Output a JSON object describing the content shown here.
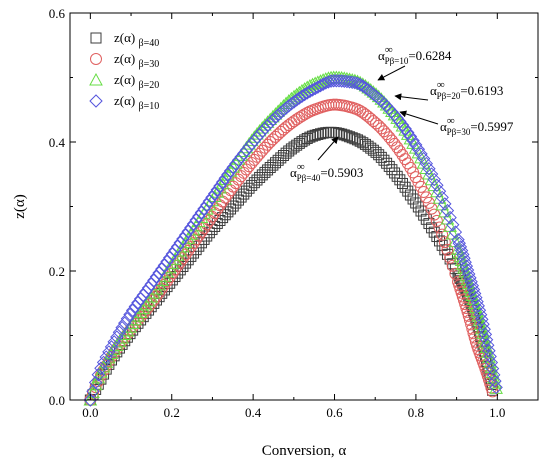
{
  "chart_data": {
    "type": "scatter",
    "title": "",
    "xlabel": "Conversion, α",
    "ylabel": "z(α)",
    "xlim": [
      -0.05,
      1.1
    ],
    "ylim": [
      0.0,
      0.6
    ],
    "xticks": [
      0.0,
      0.2,
      0.4,
      0.6,
      0.8,
      1.0
    ],
    "xtick_labels": [
      "0.0",
      "0.2",
      "0.4",
      "0.6",
      "0.8",
      "1.0"
    ],
    "yticks": [
      0.0,
      0.2,
      0.4,
      0.6
    ],
    "ytick_labels": [
      "0.0",
      "0.2",
      "0.4",
      "0.6"
    ],
    "grid": false,
    "legend_position": "top-left",
    "series": [
      {
        "name": "z(α)",
        "subscript": "β=40",
        "marker": "square",
        "color": "#3c3c3c",
        "peak_x": 0.5903,
        "peak_y": 0.415,
        "end_x": 0.99,
        "x": [
          0.0,
          0.02,
          0.05,
          0.1,
          0.15,
          0.2,
          0.25,
          0.3,
          0.35,
          0.4,
          0.45,
          0.5,
          0.55,
          0.59,
          0.65,
          0.7,
          0.75,
          0.8,
          0.85,
          0.9,
          0.93,
          0.95,
          0.97,
          0.99
        ],
        "y": [
          0.0,
          0.025,
          0.06,
          0.105,
          0.145,
          0.185,
          0.225,
          0.265,
          0.3,
          0.335,
          0.365,
          0.392,
          0.41,
          0.415,
          0.405,
          0.385,
          0.35,
          0.305,
          0.255,
          0.2,
          0.16,
          0.12,
          0.07,
          0.01
        ]
      },
      {
        "name": "z(α)",
        "subscript": "β=30",
        "marker": "circle",
        "color": "#e06060",
        "peak_x": 0.5997,
        "peak_y": 0.458,
        "end_x": 0.99,
        "x": [
          0.0,
          0.02,
          0.05,
          0.1,
          0.15,
          0.2,
          0.25,
          0.3,
          0.35,
          0.4,
          0.45,
          0.5,
          0.55,
          0.6,
          0.65,
          0.7,
          0.75,
          0.8,
          0.85,
          0.9,
          0.93,
          0.95,
          0.97,
          0.99
        ],
        "y": [
          0.0,
          0.03,
          0.065,
          0.11,
          0.15,
          0.195,
          0.24,
          0.285,
          0.33,
          0.37,
          0.405,
          0.432,
          0.45,
          0.458,
          0.452,
          0.43,
          0.395,
          0.345,
          0.28,
          0.19,
          0.13,
          0.085,
          0.05,
          0.01
        ]
      },
      {
        "name": "z(α)",
        "subscript": "β=20",
        "marker": "triangle",
        "color": "#66dd44",
        "peak_x": 0.6193,
        "peak_y": 0.5,
        "end_x": 1.0,
        "x": [
          0.0,
          0.02,
          0.05,
          0.1,
          0.15,
          0.2,
          0.25,
          0.3,
          0.35,
          0.4,
          0.45,
          0.5,
          0.55,
          0.6,
          0.65,
          0.7,
          0.75,
          0.8,
          0.85,
          0.9,
          0.93,
          0.96,
          0.98,
          1.0
        ],
        "y": [
          0.0,
          0.035,
          0.07,
          0.115,
          0.16,
          0.21,
          0.26,
          0.31,
          0.36,
          0.405,
          0.44,
          0.47,
          0.49,
          0.5,
          0.495,
          0.475,
          0.44,
          0.39,
          0.325,
          0.24,
          0.18,
          0.115,
          0.065,
          0.01
        ]
      },
      {
        "name": "z(α)",
        "subscript": "β=10",
        "marker": "diamond",
        "color": "#5555dd",
        "peak_x": 0.6284,
        "peak_y": 0.495,
        "end_x": 1.0,
        "x": [
          0.0,
          0.02,
          0.05,
          0.1,
          0.15,
          0.2,
          0.25,
          0.3,
          0.35,
          0.4,
          0.45,
          0.5,
          0.55,
          0.6,
          0.65,
          0.7,
          0.75,
          0.8,
          0.85,
          0.9,
          0.93,
          0.96,
          0.98,
          1.0
        ],
        "y": [
          0.0,
          0.04,
          0.08,
          0.135,
          0.18,
          0.225,
          0.27,
          0.315,
          0.36,
          0.4,
          0.435,
          0.462,
          0.482,
          0.495,
          0.492,
          0.472,
          0.44,
          0.395,
          0.335,
          0.255,
          0.195,
          0.13,
          0.075,
          0.01
        ]
      }
    ],
    "annotations": [
      {
        "base": "α",
        "superscript": "∞",
        "subscript": "Pβ=10",
        "value": "=0.6284"
      },
      {
        "base": "α",
        "superscript": "∞",
        "subscript": "Pβ=20",
        "value": "=0.6193"
      },
      {
        "base": "α",
        "superscript": "∞",
        "subscript": "Pβ=30",
        "value": "=0.5997"
      },
      {
        "base": "α",
        "superscript": "∞",
        "subscript": "Pβ=40",
        "value": "=0.5903"
      }
    ]
  }
}
